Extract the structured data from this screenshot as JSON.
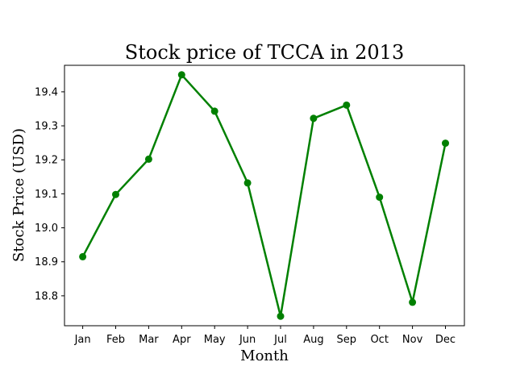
{
  "chart_data": {
    "type": "line",
    "title": "Stock price of TCCA in 2013",
    "xlabel": "Month",
    "ylabel": "Stock Price (USD)",
    "categories": [
      "Jan",
      "Feb",
      "Mar",
      "Apr",
      "May",
      "Jun",
      "Jul",
      "Aug",
      "Sep",
      "Oct",
      "Nov",
      "Dec"
    ],
    "series": [
      {
        "values": [
          18.915,
          19.098,
          19.202,
          19.45,
          19.343,
          19.132,
          18.74,
          19.322,
          19.361,
          19.09,
          18.781,
          19.249
        ],
        "color": "#008000"
      }
    ],
    "yticks": [
      18.8,
      18.9,
      19.0,
      19.1,
      19.2,
      19.3,
      19.4
    ],
    "ylim": [
      18.712,
      19.478
    ],
    "grid": false,
    "legend": "none"
  }
}
